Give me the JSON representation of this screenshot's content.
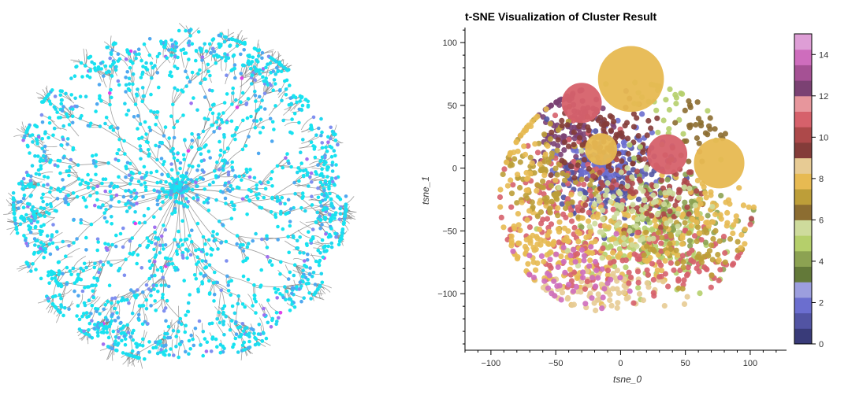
{
  "network": {
    "node_colors": [
      "#17e3f0",
      "#22d7ef",
      "#4fa8f0",
      "#7f8ff0",
      "#a070f0",
      "#e040e8"
    ],
    "edge_color": "#808080"
  },
  "chart_data": {
    "type": "scatter",
    "title": "t-SNE Visualization of Cluster Result",
    "xlabel": "tsne_0",
    "ylabel": "tsne_1",
    "xlim": [
      -120,
      128
    ],
    "ylim": [
      -145,
      112
    ],
    "xticks": [
      -100,
      -50,
      0,
      50,
      100
    ],
    "yticks": [
      -100,
      -50,
      0,
      50,
      100
    ],
    "grid": false,
    "colorbar": {
      "min": 0,
      "max": 15,
      "ticks": [
        0,
        2,
        4,
        6,
        8,
        10,
        12,
        14
      ],
      "palette": [
        "#393b79",
        "#5254a3",
        "#6b6ecf",
        "#9c9ede",
        "#637939",
        "#8ca252",
        "#b5cf6b",
        "#cedb9c",
        "#8c6d31",
        "#bd9e39",
        "#e7ba52",
        "#e7cb94",
        "#843c39",
        "#ad494a",
        "#d6616b",
        "#e7969c",
        "#7b4173",
        "#a55194",
        "#ce6dbd",
        "#de9ed6"
      ]
    },
    "large_clusters": [
      {
        "x": 8,
        "y": 71,
        "r": 25,
        "color": "#e7ba52"
      },
      {
        "x": -30,
        "y": 52,
        "r": 15,
        "color": "#d6616b"
      },
      {
        "x": 36,
        "y": 11,
        "r": 15,
        "color": "#d6616b"
      },
      {
        "x": -15,
        "y": 15,
        "r": 12,
        "color": "#e7ba52"
      },
      {
        "x": 76,
        "y": 4,
        "r": 19,
        "color": "#e7ba52"
      }
    ],
    "point_groups": [
      {
        "cx": -42,
        "cy": 35,
        "sx": 14,
        "sy": 22,
        "n": 120,
        "color": "#7b4173"
      },
      {
        "cx": -5,
        "cy": -12,
        "sx": 22,
        "sy": 16,
        "n": 150,
        "color": "#5254a3"
      },
      {
        "cx": -10,
        "cy": 5,
        "sx": 18,
        "sy": 14,
        "n": 110,
        "color": "#6b6ecf"
      },
      {
        "cx": 20,
        "cy": -55,
        "sx": 28,
        "sy": 18,
        "n": 180,
        "color": "#b5cf6b"
      },
      {
        "cx": 40,
        "cy": -40,
        "sx": 25,
        "sy": 18,
        "n": 110,
        "color": "#8ca252"
      },
      {
        "cx": -45,
        "cy": -30,
        "sx": 22,
        "sy": 28,
        "n": 140,
        "color": "#d6616b"
      },
      {
        "cx": -15,
        "cy": -60,
        "sx": 30,
        "sy": 22,
        "n": 170,
        "color": "#e7ba52"
      },
      {
        "cx": -55,
        "cy": -5,
        "sx": 18,
        "sy": 20,
        "n": 100,
        "color": "#bd9e39"
      },
      {
        "cx": -10,
        "cy": 20,
        "sx": 20,
        "sy": 15,
        "n": 110,
        "color": "#843c39"
      },
      {
        "cx": 25,
        "cy": -20,
        "sx": 25,
        "sy": 15,
        "n": 90,
        "color": "#ad494a"
      },
      {
        "cx": -20,
        "cy": -100,
        "sx": 25,
        "sy": 9,
        "n": 80,
        "color": "#e7cb94"
      },
      {
        "cx": 30,
        "cy": -75,
        "sx": 35,
        "sy": 15,
        "n": 110,
        "color": "#d6616b"
      },
      {
        "cx": 55,
        "cy": -60,
        "sx": 20,
        "sy": 15,
        "n": 60,
        "color": "#bd9e39"
      },
      {
        "cx": 70,
        "cy": -35,
        "sx": 20,
        "sy": 15,
        "n": 60,
        "color": "#e7ba52"
      },
      {
        "cx": 35,
        "cy": 50,
        "sx": 15,
        "sy": 20,
        "n": 35,
        "color": "#b5cf6b"
      },
      {
        "cx": 60,
        "cy": 30,
        "sx": 12,
        "sy": 15,
        "n": 30,
        "color": "#8c6d31"
      },
      {
        "cx": -65,
        "cy": -55,
        "sx": 15,
        "sy": 15,
        "n": 50,
        "color": "#e7ba52"
      },
      {
        "cx": 5,
        "cy": -30,
        "sx": 25,
        "sy": 20,
        "n": 80,
        "color": "#cedb9c"
      },
      {
        "cx": -35,
        "cy": -85,
        "sx": 20,
        "sy": 12,
        "n": 50,
        "color": "#ce6dbd"
      },
      {
        "cx": -75,
        "cy": 10,
        "sx": 10,
        "sy": 25,
        "n": 40,
        "color": "#e7ba52"
      }
    ]
  }
}
